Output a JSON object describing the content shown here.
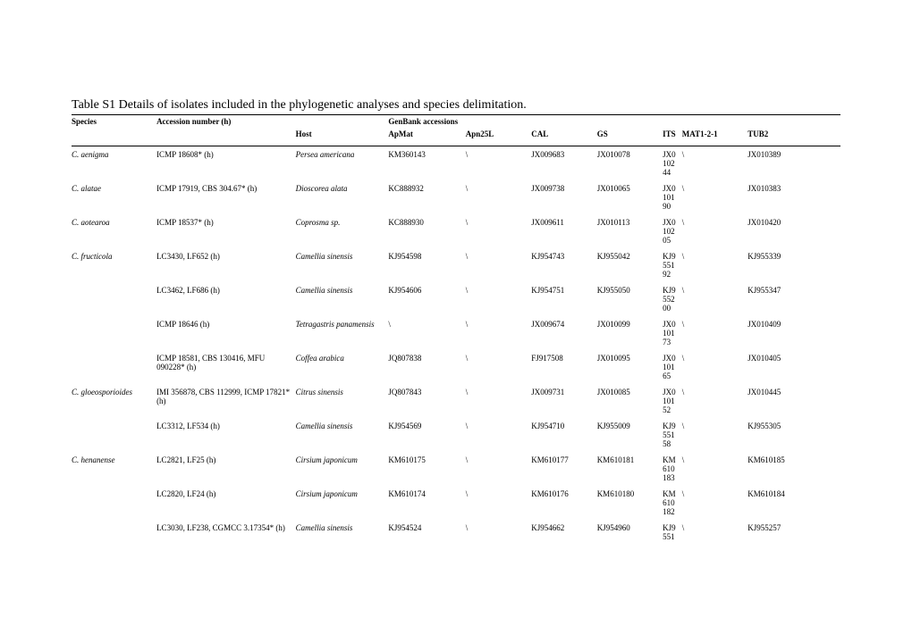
{
  "title": "Table S1 Details of isolates included in the phylogenetic analyses and species delimitation.",
  "columns_top": [
    "Species",
    "Accession number (h)",
    "",
    "GenBank accessions",
    "",
    "",
    "",
    "",
    "",
    ""
  ],
  "columns_sub": [
    "",
    "",
    "Host",
    "ApMat",
    "Apn25L",
    "CAL",
    "GS",
    "ITS",
    "MAT1-2-1",
    "TUB2"
  ],
  "col_italic": [
    true,
    false,
    true,
    false,
    false,
    false,
    false,
    false,
    false,
    false
  ],
  "rows": [
    [
      "C. aenigma",
      "ICMP 18608* (h)",
      "Persea americana",
      "KM360143",
      "\\",
      "JX009683",
      "JX010078",
      "JX010244",
      "\\",
      "JX010389"
    ],
    [
      "C. alatae",
      "ICMP 17919, CBS 304.67* (h)",
      "Dioscorea alata",
      "KC888932",
      "\\",
      "JX009738",
      "JX010065",
      "JX010190",
      "\\",
      "JX010383"
    ],
    [
      "C. aotearoa",
      "ICMP 18537* (h)",
      "Coprosma sp.",
      "KC888930",
      "\\",
      "JX009611",
      "JX010113",
      "JX010205",
      "\\",
      "JX010420"
    ],
    [
      "C. fructicola",
      "LC3430, LF652 (h)",
      "Camellia sinensis",
      "KJ954598",
      "\\",
      "KJ954743",
      "KJ955042",
      "KJ955192",
      "\\",
      "KJ955339"
    ],
    [
      "",
      "LC3462, LF686 (h)",
      "Camellia sinensis",
      "KJ954606",
      "\\",
      "KJ954751",
      "KJ955050",
      "KJ955200",
      "\\",
      "KJ955347"
    ],
    [
      "",
      "ICMP 18646 (h)",
      "Tetragastris panamensis",
      "\\",
      "\\",
      "JX009674",
      "JX010099",
      "JX010173",
      "\\",
      "JX010409"
    ],
    [
      "",
      "ICMP 18581, CBS 130416, MFU 090228* (h)",
      "Coffea arabica",
      "JQ807838",
      "\\",
      "FJ917508",
      "JX010095",
      "JX010165",
      "\\",
      "JX010405"
    ],
    [
      "C. gloeosporioides",
      "IMI 356878, CBS 112999, ICMP 17821* (h)",
      "Citrus sinensis",
      "JQ807843",
      "\\",
      "JX009731",
      "JX010085",
      "JX010152",
      "\\",
      "JX010445"
    ],
    [
      "",
      "LC3312, LF534 (h)",
      "Camellia sinensis",
      "KJ954569",
      "\\",
      "KJ954710",
      "KJ955009",
      "KJ955158",
      "\\",
      "KJ955305"
    ],
    [
      "C. henanense",
      "LC2821, LF25 (h)",
      "Cirsium japonicum",
      "KM610175",
      "\\",
      "KM610177",
      "KM610181",
      "KM610183",
      "\\",
      "KM610185"
    ],
    [
      "",
      "LC2820, LF24 (h)",
      "Cirsium japonicum",
      "KM610174",
      "\\",
      "KM610176",
      "KM610180",
      "KM610182",
      "\\",
      "KM610184"
    ],
    [
      "",
      "LC3030, LF238, CGMCC 3.17354* (h)",
      "Camellia sinensis",
      "KJ954524",
      "\\",
      "KJ954662",
      "KJ954960",
      "KJ9551",
      "\\",
      "KJ955257"
    ]
  ],
  "style": {
    "background_color": "#ffffff",
    "text_color": "#000000",
    "title_fontsize": 14,
    "body_fontsize": 9,
    "font_family": "Times New Roman",
    "border_color": "#000000"
  }
}
